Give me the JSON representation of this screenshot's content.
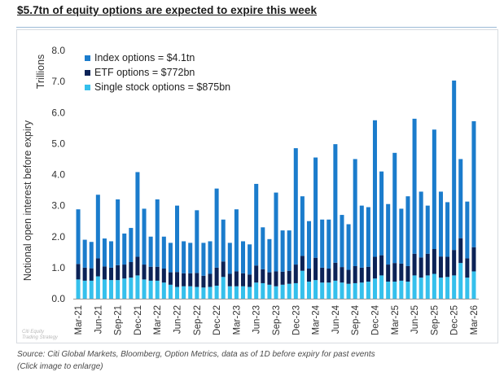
{
  "title": "$5.7tn of equity options are expected to expire this week",
  "source": "Source: Citi Global Markets, Bloomberg, Option Metrics, data as of 1D before expiry for past events",
  "enlarge_note": "(Click image to enlarge)",
  "watermark": [
    "Citi Equity",
    "Trading Strategy"
  ],
  "colors": {
    "index": "#1b7ccc",
    "etf": "#0c2357",
    "single": "#35c0ec"
  },
  "chart_data": {
    "type": "bar",
    "stacked": true,
    "ylabel": "Notional open interest before expiry",
    "yunit_label": "Trillions",
    "ylim": [
      0,
      8
    ],
    "yticks": [
      "0.0",
      "1.0",
      "2.0",
      "3.0",
      "4.0",
      "5.0",
      "6.0",
      "7.0",
      "8.0"
    ],
    "legend_position": "top-left",
    "xtick_labels": [
      "Mar-21",
      "Jun-21",
      "Sep-21",
      "Dec-21",
      "Mar-22",
      "Jun-22",
      "Sep-22",
      "Dec-22",
      "Mar-23",
      "Jun-23",
      "Sep-23",
      "Dec-23",
      "Mar-24",
      "Jun-24",
      "Sep-24",
      "Dec-24",
      "Mar-25",
      "Jun-25",
      "Sep-25",
      "Dec-25",
      "Mar-26"
    ],
    "categories": [
      "Mar-21",
      "Apr-21",
      "May-21",
      "Jun-21",
      "Jul-21",
      "Aug-21",
      "Sep-21",
      "Oct-21",
      "Nov-21",
      "Dec-21",
      "Jan-22",
      "Feb-22",
      "Mar-22",
      "Apr-22",
      "May-22",
      "Jun-22",
      "Jul-22",
      "Aug-22",
      "Sep-22",
      "Oct-22",
      "Nov-22",
      "Dec-22",
      "Jan-23",
      "Feb-23",
      "Mar-23",
      "Apr-23",
      "May-23",
      "Jun-23",
      "Jul-23",
      "Aug-23",
      "Sep-23",
      "Oct-23",
      "Nov-23",
      "Dec-23",
      "Jan-24",
      "Feb-24",
      "Mar-24",
      "Apr-24",
      "May-24",
      "Jun-24",
      "Jul-24",
      "Aug-24",
      "Sep-24",
      "Oct-24",
      "Nov-24",
      "Dec-24",
      "Jan-25",
      "Feb-25",
      "Mar-25",
      "Apr-25",
      "May-25",
      "Jun-25",
      "Jul-25",
      "Aug-25",
      "Sep-25",
      "Oct-25",
      "Nov-25",
      "Dec-25",
      "Jan-26",
      "Feb-26",
      "Mar-26"
    ],
    "series": [
      {
        "name": "Single stock options = $875bn",
        "key": "single",
        "values": [
          0.62,
          0.58,
          0.58,
          0.72,
          0.62,
          0.6,
          0.6,
          0.65,
          0.68,
          0.75,
          0.62,
          0.58,
          0.58,
          0.52,
          0.45,
          0.38,
          0.4,
          0.4,
          0.38,
          0.36,
          0.38,
          0.42,
          0.7,
          0.4,
          0.4,
          0.4,
          0.38,
          0.52,
          0.5,
          0.45,
          0.4,
          0.45,
          0.48,
          0.5,
          0.9,
          0.55,
          0.6,
          0.52,
          0.52,
          0.58,
          0.52,
          0.48,
          0.5,
          0.52,
          0.55,
          0.65,
          0.75,
          0.55,
          0.55,
          0.58,
          0.55,
          0.75,
          0.68,
          0.75,
          0.8,
          0.68,
          0.7,
          0.75,
          1.15,
          0.68,
          0.88
        ]
      },
      {
        "name": "ETF options = $772bn",
        "key": "etf",
        "values": [
          0.5,
          0.42,
          0.4,
          0.58,
          0.42,
          0.4,
          0.48,
          0.45,
          0.5,
          0.6,
          0.48,
          0.45,
          0.45,
          0.45,
          0.4,
          0.48,
          0.42,
          0.42,
          0.45,
          0.38,
          0.42,
          0.58,
          0.5,
          0.4,
          0.48,
          0.42,
          0.4,
          0.55,
          0.45,
          0.4,
          0.48,
          0.42,
          0.42,
          0.6,
          0.48,
          0.42,
          0.72,
          0.48,
          0.45,
          0.58,
          0.5,
          0.45,
          0.55,
          0.48,
          0.48,
          0.7,
          0.65,
          0.55,
          0.6,
          0.55,
          0.5,
          0.7,
          0.65,
          0.7,
          0.8,
          0.68,
          0.65,
          0.82,
          0.8,
          0.62,
          0.78
        ]
      },
      {
        "name": "Index options = $4.1tn",
        "key": "index",
        "values": [
          1.76,
          0.9,
          0.85,
          2.05,
          0.9,
          0.85,
          2.12,
          1.0,
          1.1,
          2.73,
          1.8,
          0.97,
          2.17,
          1.03,
          0.95,
          2.14,
          1.03,
          0.98,
          2.02,
          1.06,
          1.05,
          2.55,
          1.35,
          1.0,
          2.0,
          1.03,
          0.97,
          2.63,
          1.35,
          1.07,
          2.54,
          1.33,
          1.3,
          3.75,
          1.92,
          1.53,
          3.23,
          1.55,
          1.58,
          3.82,
          1.68,
          1.47,
          3.45,
          2.0,
          1.92,
          4.4,
          2.7,
          1.95,
          3.55,
          1.77,
          2.25,
          4.35,
          2.12,
          1.55,
          3.85,
          2.09,
          1.76,
          5.46,
          2.55,
          1.83,
          4.06
        ]
      }
    ]
  }
}
